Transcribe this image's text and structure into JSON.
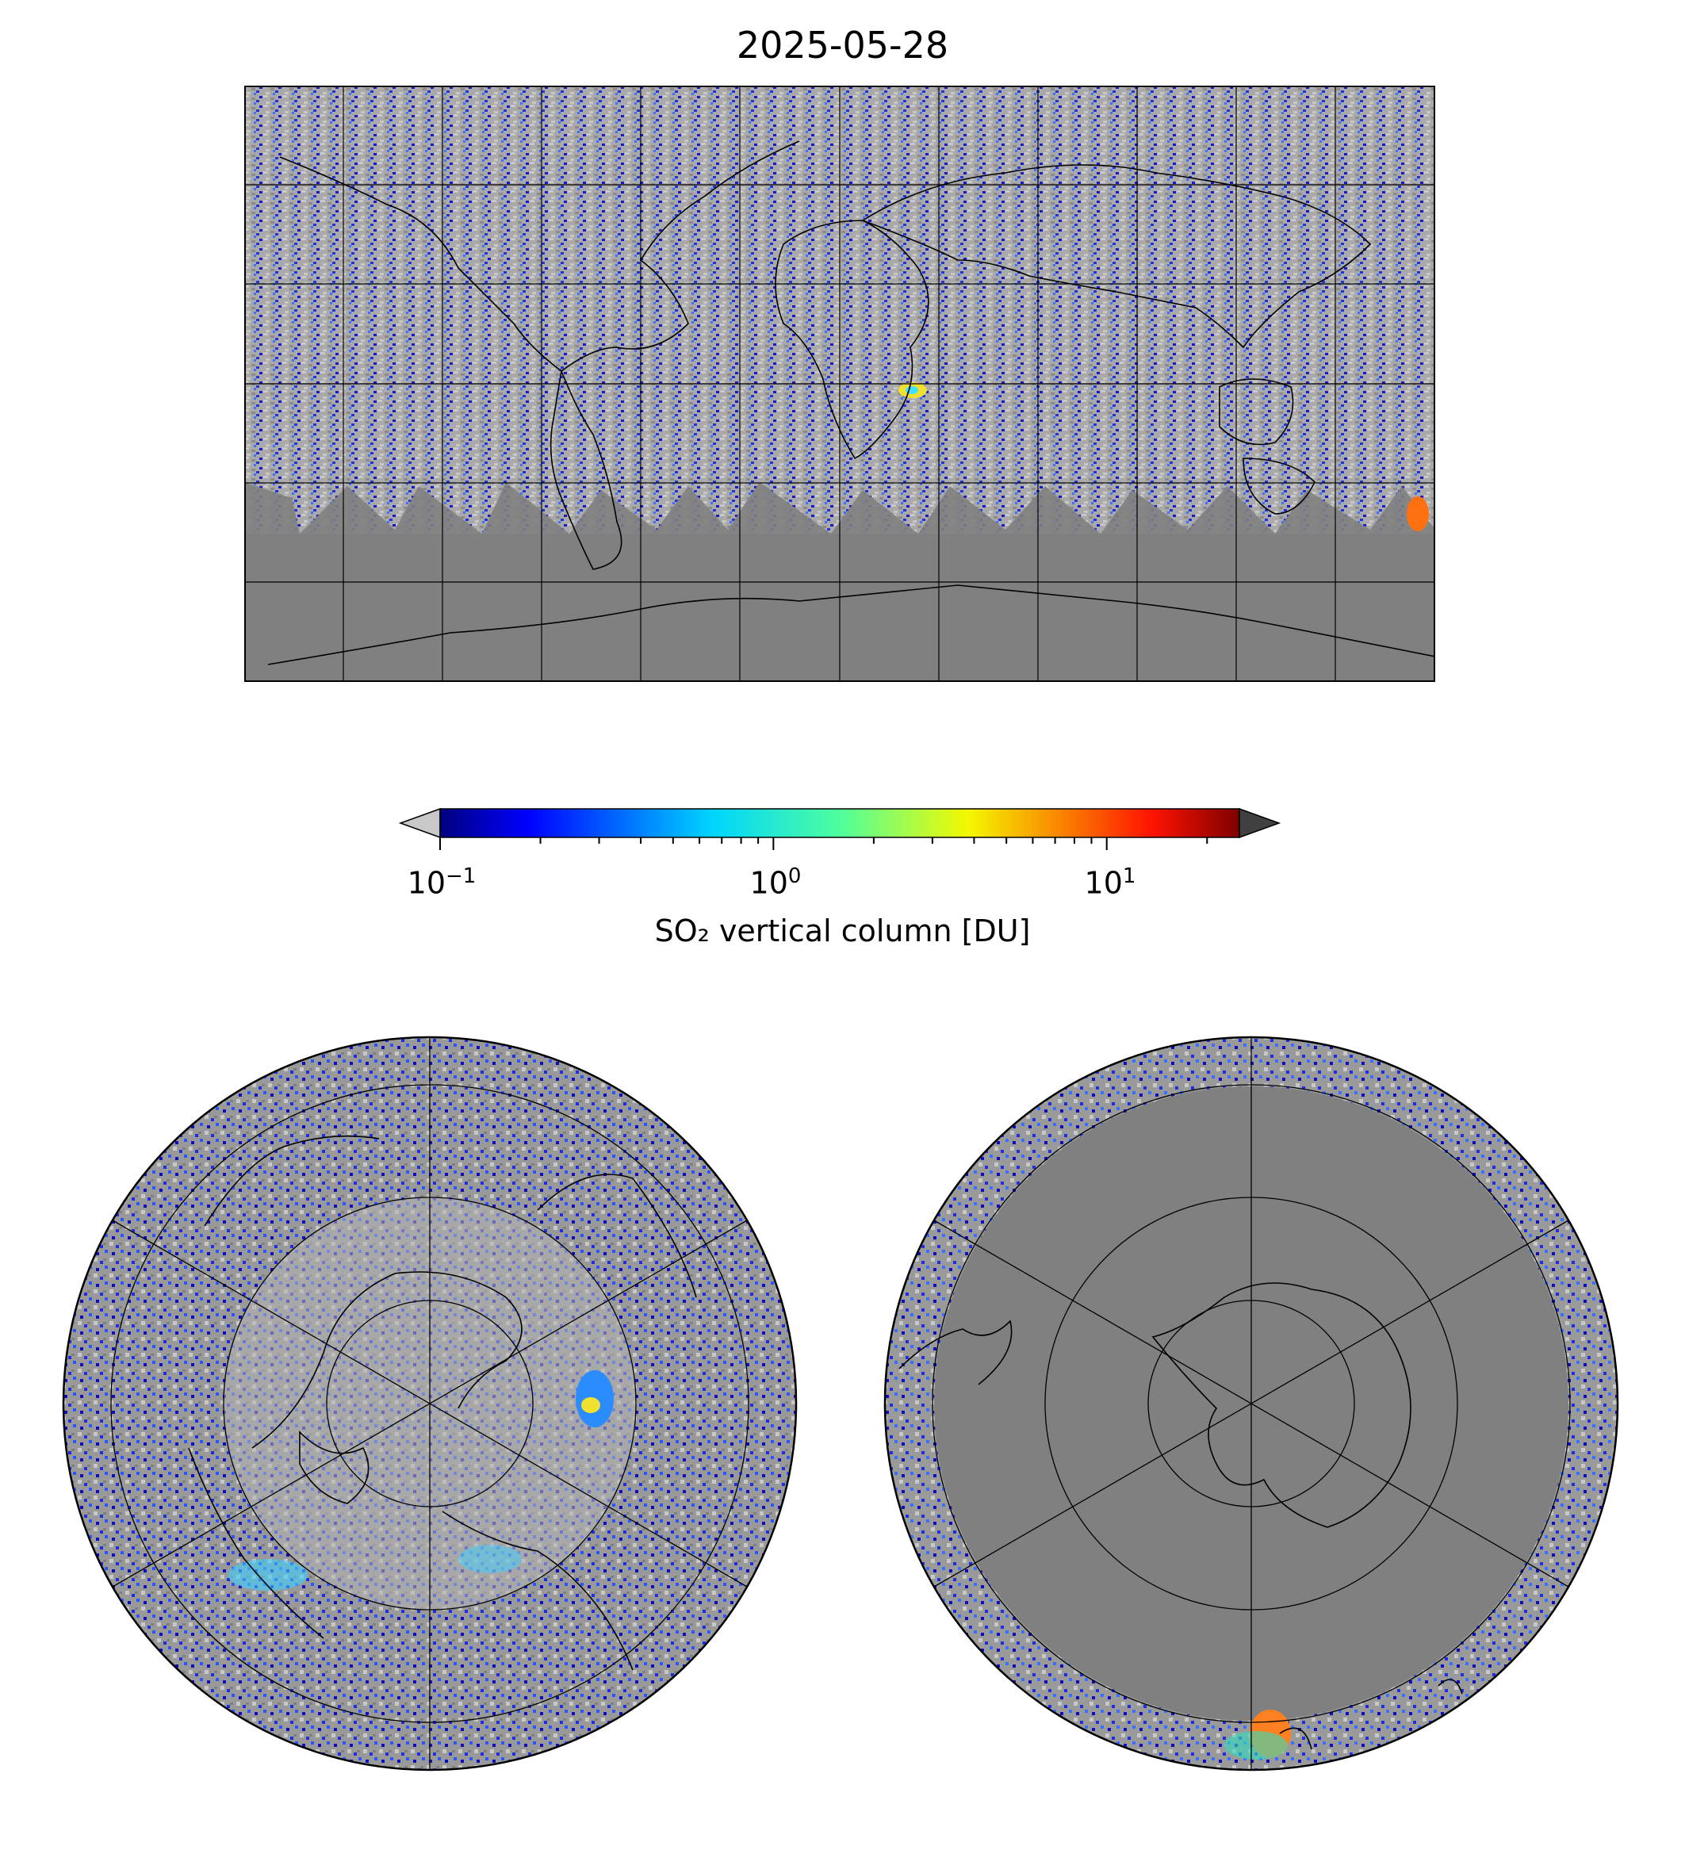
{
  "title": "2025-05-28",
  "colorbar": {
    "label": "SO₂ vertical column [DU]",
    "scale": "log",
    "range": [
      0.1,
      25
    ],
    "colormap": "jet",
    "ticks": [
      {
        "base": "10",
        "exp": "−1",
        "value": 0.1
      },
      {
        "base": "10",
        "exp": "0",
        "value": 1
      },
      {
        "base": "10",
        "exp": "1",
        "value": 10
      }
    ],
    "under_color": "#c8c8c8",
    "over_color": "#404040"
  },
  "maps": [
    {
      "id": "global",
      "projection": "equirectangular",
      "grid": true
    },
    {
      "id": "north-pole",
      "projection": "north polar stereographic",
      "grid": true
    },
    {
      "id": "south-pole",
      "projection": "south polar stereographic",
      "grid": true
    }
  ],
  "colors": {
    "no_data": "#808080",
    "below_range": "#c0c0c0",
    "coastline": "#000000"
  }
}
